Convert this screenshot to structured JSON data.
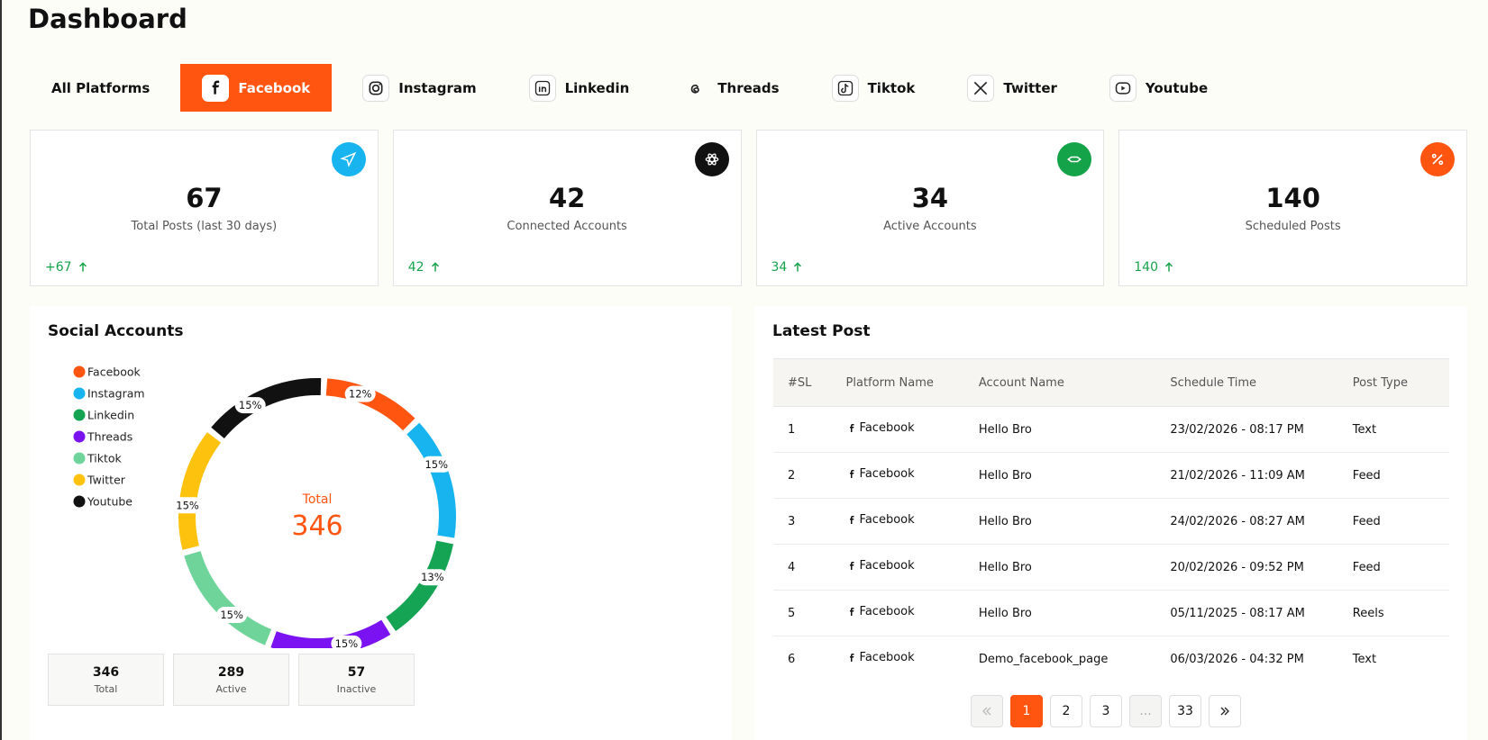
{
  "header": {
    "title": "Dashboard"
  },
  "tabs": [
    {
      "label": "All Platforms",
      "active": false
    },
    {
      "label": "Facebook",
      "active": true
    },
    {
      "label": "Instagram",
      "active": false
    },
    {
      "label": "Linkedin",
      "active": false
    },
    {
      "label": "Threads",
      "active": false
    },
    {
      "label": "Tiktok",
      "active": false
    },
    {
      "label": "Twitter",
      "active": false
    },
    {
      "label": "Youtube",
      "active": false
    }
  ],
  "stats": [
    {
      "value": "67",
      "label": "Total Posts (last 30 days)",
      "change": "+67",
      "icon_color": "#18b4ef"
    },
    {
      "value": "42",
      "label": "Connected Accounts",
      "change": "42",
      "icon_color": "#111111"
    },
    {
      "value": "34",
      "label": "Active Accounts",
      "change": "34",
      "icon_color": "#15a34a"
    },
    {
      "value": "140",
      "label": "Scheduled Posts",
      "change": "140",
      "icon_color": "#ff5511"
    }
  ],
  "social_accounts": {
    "title": "Social Accounts",
    "chart_data": {
      "type": "pie",
      "categories": [
        "Facebook",
        "Instagram",
        "Linkedin",
        "Threads",
        "Tiktok",
        "Twitter",
        "Youtube"
      ],
      "values": [
        12,
        15,
        13,
        15,
        15,
        15,
        15
      ],
      "value_labels": [
        "12%",
        "15%",
        "13%",
        "15%",
        "15%",
        "15%",
        "15%"
      ],
      "colors": [
        "#ff5511",
        "#18b4ef",
        "#15a354",
        "#7a12f2",
        "#6fd49a",
        "#fdc20e",
        "#111111"
      ],
      "center_label": "Total",
      "center_value": 346
    },
    "summary": [
      {
        "value": "346",
        "label": "Total"
      },
      {
        "value": "289",
        "label": "Active"
      },
      {
        "value": "57",
        "label": "Inactive"
      }
    ]
  },
  "latest_post": {
    "title": "Latest Post",
    "table": {
      "columns": [
        "#SL",
        "Platform Name",
        "Account Name",
        "Schedule Time",
        "Post Type"
      ],
      "rows": [
        [
          "1",
          "Facebook",
          "Hello Bro",
          "23/02/2026 - 08:17 PM",
          "Text"
        ],
        [
          "2",
          "Facebook",
          "Hello Bro",
          "21/02/2026 - 11:09 AM",
          "Feed"
        ],
        [
          "3",
          "Facebook",
          "Hello Bro",
          "24/02/2026 - 08:27 AM",
          "Feed"
        ],
        [
          "4",
          "Facebook",
          "Hello Bro",
          "20/02/2026 - 09:52 PM",
          "Feed"
        ],
        [
          "5",
          "Facebook",
          "Hello Bro",
          "05/11/2025 - 08:17 AM",
          "Reels"
        ],
        [
          "6",
          "Facebook",
          "Demo_facebook_page",
          "06/03/2026 - 04:32 PM",
          "Text"
        ]
      ]
    }
  },
  "pagination": {
    "pages": [
      {
        "label": "1",
        "active": true
      },
      {
        "label": "2",
        "active": false
      },
      {
        "label": "3",
        "active": false
      },
      {
        "label": "...",
        "active": false
      },
      {
        "label": "33",
        "active": false
      }
    ]
  }
}
